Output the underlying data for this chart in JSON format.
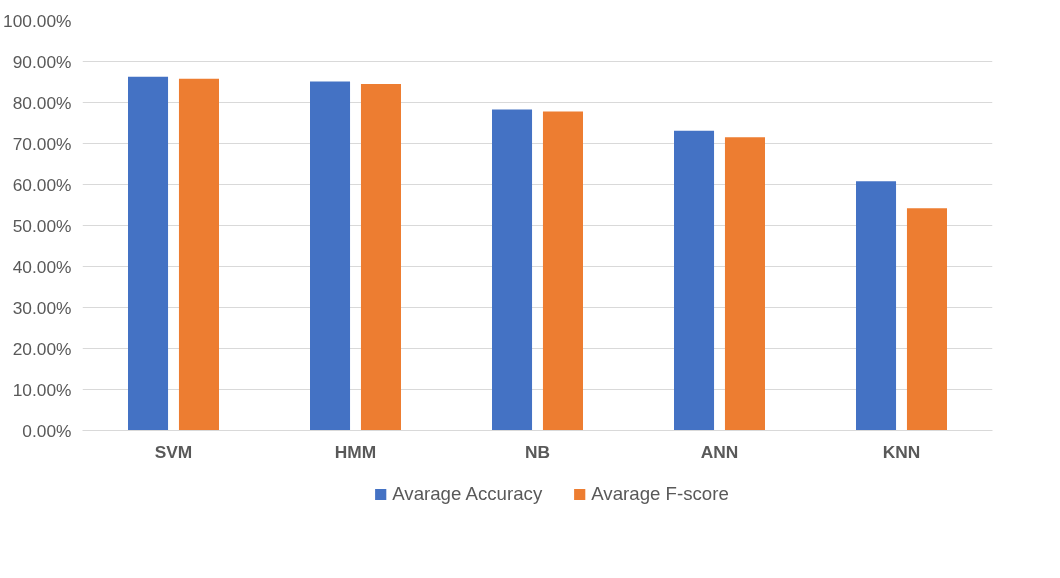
{
  "chart_data": {
    "type": "bar",
    "categories": [
      "SVM",
      "HMM",
      "NB",
      "ANN",
      "KNN"
    ],
    "series": [
      {
        "name": "Avarage Accuracy",
        "color": "#4472c4",
        "values": [
          86.3,
          85.1,
          78.3,
          73.1,
          60.8
        ]
      },
      {
        "name": "Avarage F-score",
        "color": "#ed7d31",
        "values": [
          85.8,
          84.5,
          77.8,
          71.5,
          54.2
        ]
      }
    ],
    "ylim": [
      0,
      100
    ],
    "yticks": [
      {
        "value": 0,
        "label": "0.00%"
      },
      {
        "value": 10,
        "label": "10.00%"
      },
      {
        "value": 20,
        "label": "20.00%"
      },
      {
        "value": 30,
        "label": "30.00%"
      },
      {
        "value": 40,
        "label": "40.00%"
      },
      {
        "value": 50,
        "label": "50.00%"
      },
      {
        "value": 60,
        "label": "60.00%"
      },
      {
        "value": 70,
        "label": "70.00%"
      },
      {
        "value": 80,
        "label": "80.00%"
      },
      {
        "value": 90,
        "label": "90.00%"
      },
      {
        "value": 100,
        "label": "100.00%"
      }
    ],
    "grid": "y",
    "legend": "bottom"
  }
}
